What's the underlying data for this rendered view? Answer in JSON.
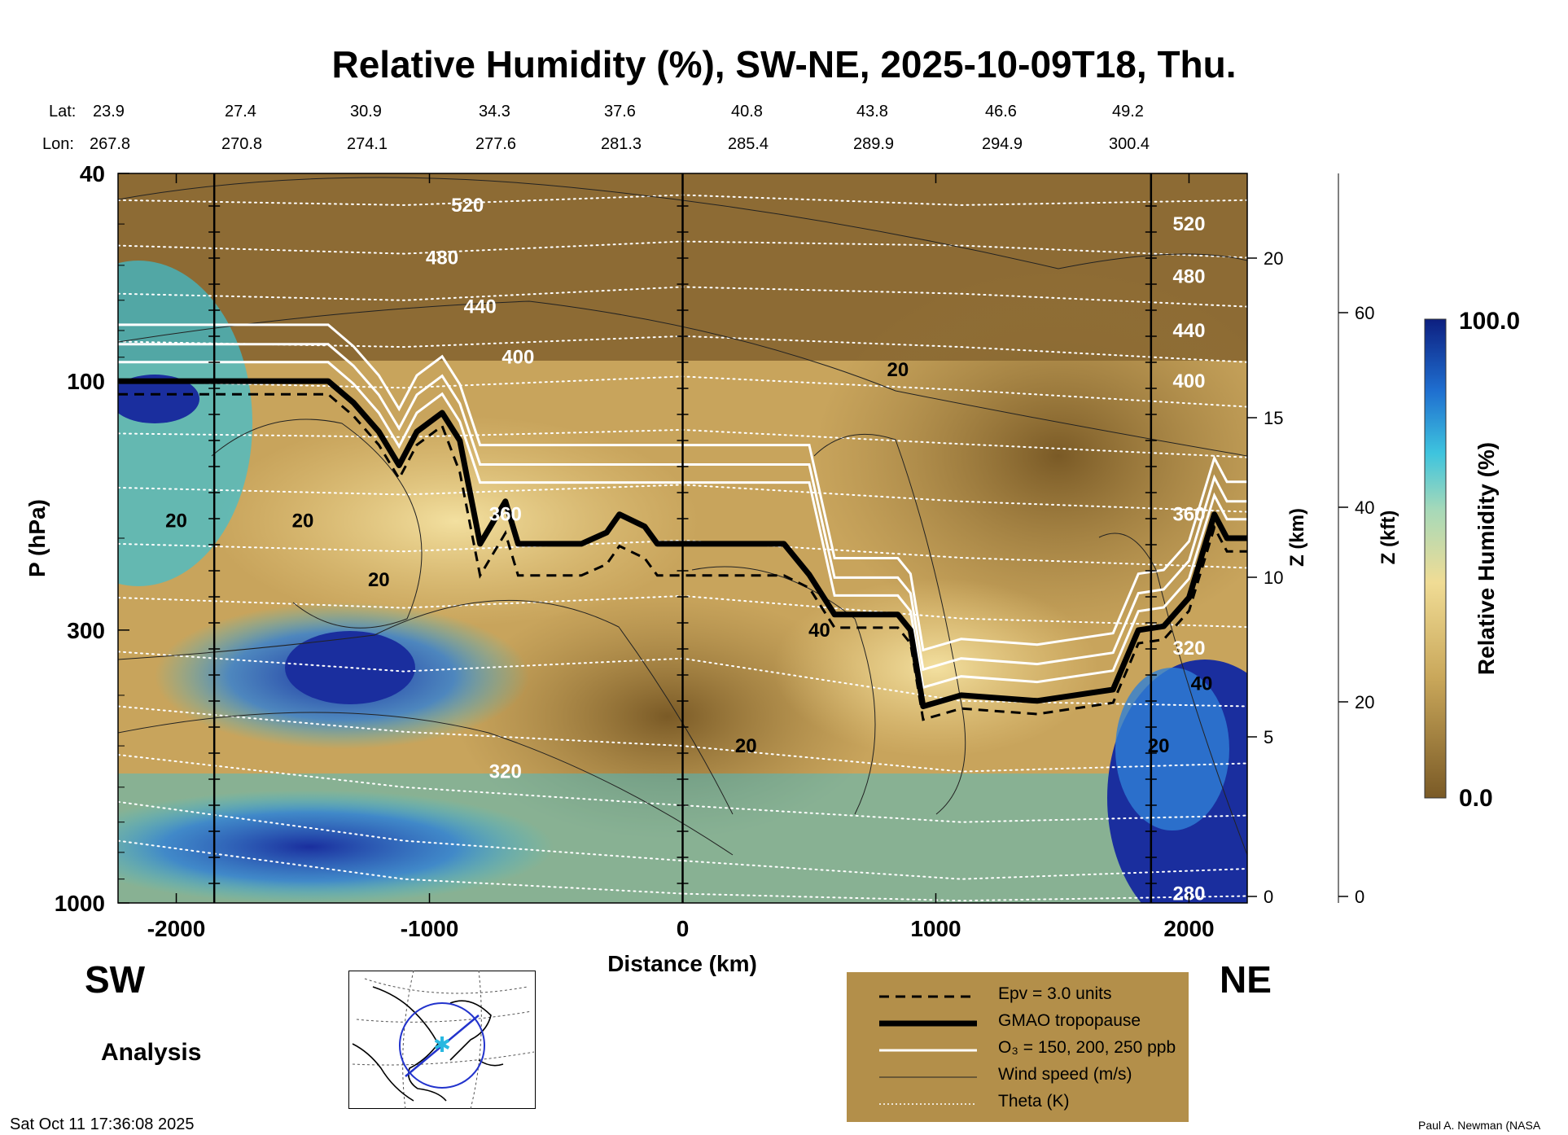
{
  "chart_data": {
    "type": "heatmap",
    "title": "Relative Humidity (%), SW-NE, 2025-10-09T18, Thu.",
    "xlabel": "Distance (km)",
    "ylabel": "P (hPa)",
    "right_axis_1_label": "Z (km)",
    "right_axis_2_label": "Z (kft)",
    "colorbar_label": "Relative Humidity (%)",
    "colorbar_range": [
      0.0,
      100.0
    ],
    "colorbar_ticks": [
      "100.0",
      "0.0"
    ],
    "colors": {
      "dry": "#7a5a26",
      "mid": "#e2c47a",
      "wet": "#39c0d6",
      "very_wet": "#1a2e9e"
    },
    "xlim": [
      -2230,
      2230
    ],
    "ylim": [
      1000,
      40
    ],
    "x_ticks": [
      -2000,
      -1000,
      0,
      1000,
      2000
    ],
    "x_tick_labels": [
      "-2000",
      "-1000",
      "0",
      "1000",
      "2000"
    ],
    "y_ticks": [
      40,
      100,
      300,
      1000
    ],
    "y_tick_labels": [
      "40",
      "100",
      "300",
      "1000"
    ],
    "z_km_ticks": [
      0,
      5,
      10,
      15,
      20
    ],
    "z_km_labels": [
      "0",
      "5",
      "10",
      "15",
      "20"
    ],
    "z_kft_ticks": [
      0,
      20,
      40,
      60
    ],
    "z_kft_labels": [
      "0",
      "20",
      "40",
      "60"
    ],
    "lat_label": "Lat:",
    "lon_label": "Lon:",
    "lat": [
      "23.9",
      "27.4",
      "30.9",
      "34.3",
      "37.6",
      "40.8",
      "43.8",
      "46.6",
      "49.2"
    ],
    "lon": [
      "267.8",
      "270.8",
      "274.1",
      "277.6",
      "281.3",
      "285.4",
      "289.9",
      "294.9",
      "300.4"
    ],
    "vertical_markers_km": [
      -1850,
      0,
      1850
    ],
    "theta_labels": [
      "520",
      "480",
      "440",
      "400",
      "360",
      "320",
      "280",
      "520",
      "480",
      "440",
      "400",
      "360",
      "320"
    ],
    "wind_labels": [
      "20",
      "20",
      "20",
      "40",
      "20",
      "20",
      "40",
      "20"
    ],
    "tropopause": {
      "x": [
        -2230,
        -1800,
        -1400,
        -1300,
        -1200,
        -1120,
        -1050,
        -950,
        -880,
        -800,
        -700,
        -650,
        -600,
        -400,
        -300,
        -250,
        -150,
        -100,
        0,
        200,
        400,
        500,
        600,
        700,
        850,
        900,
        950,
        1100,
        1400,
        1700,
        1800,
        1900,
        2000,
        2100,
        2150,
        2230
      ],
      "p": [
        100,
        100,
        100,
        110,
        125,
        145,
        125,
        115,
        130,
        205,
        170,
        205,
        205,
        205,
        195,
        180,
        190,
        205,
        205,
        205,
        205,
        235,
        280,
        280,
        280,
        300,
        420,
        400,
        410,
        390,
        300,
        295,
        260,
        180,
        200,
        200
      ]
    },
    "legend": {
      "items": [
        "Epv = 3.0 units",
        "GMAO tropopause",
        "O₃ = 150, 200, 250 ppb",
        "Wind speed (m/s)",
        "Theta (K)"
      ],
      "background": "#b38f4a"
    }
  },
  "labels": {
    "sw": "SW",
    "ne": "NE",
    "analysis": "Analysis",
    "timestamp": "Sat Oct 11 17:36:08 2025",
    "credit": "Paul A. Newman (NASA"
  }
}
